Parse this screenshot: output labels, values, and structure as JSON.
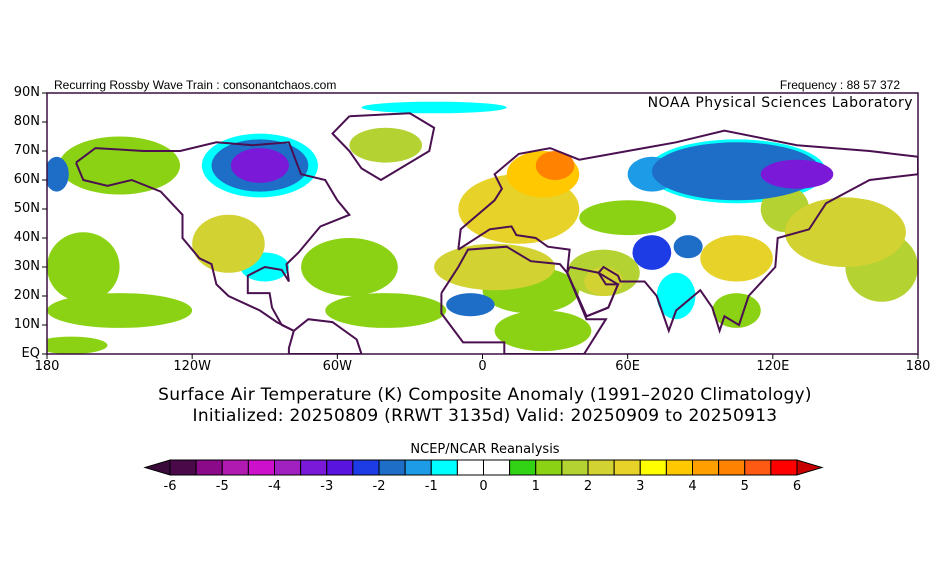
{
  "header": {
    "left_text": "Recurring Rossby Wave Train : consonantchaos.com",
    "right_text": "Frequency : 88 57 372",
    "org": "NOAA Physical Sciences Laboratory"
  },
  "titles": {
    "line1": "Surface Air Temperature (K) Composite Anomaly (1991–2020 Climatology)",
    "line2": "Initialized: 20250809 (RRWT 3135d) Valid: 20250909 to 20250913"
  },
  "colorbar": {
    "title": "NCEP/NCAR Reanalysis",
    "labels": [
      "-6",
      "-5",
      "-4",
      "-3",
      "-2",
      "-1",
      "0",
      "1",
      "2",
      "3",
      "4",
      "5",
      "6"
    ],
    "min": -6,
    "max": 6,
    "step": 0.5,
    "colors": [
      "#4a0a4a",
      "#8a0a8a",
      "#b01ab0",
      "#cc10cc",
      "#a020c0",
      "#7a1ad8",
      "#5a14e0",
      "#1e3ce6",
      "#1e6ec8",
      "#1e9be6",
      "#00ffff",
      "#ffffff",
      "#ffffff",
      "#32d214",
      "#8cd214",
      "#b4d232",
      "#d2d232",
      "#e6d228",
      "#ffff00",
      "#ffc800",
      "#ffa000",
      "#ff8200",
      "#ff5a14",
      "#ff0000"
    ],
    "under_color": "#3a0a3a",
    "over_color": "#c80000"
  },
  "chart_data": {
    "type": "heatmap",
    "title": "Surface Air Temperature (K) Composite Anomaly (1991–2020 Climatology)",
    "units": "K",
    "xlim": [
      -180,
      180
    ],
    "ylim": [
      0,
      90
    ],
    "x_ticks": [
      {
        "value": -180,
        "label": "180"
      },
      {
        "value": -120,
        "label": "120W"
      },
      {
        "value": -60,
        "label": "60W"
      },
      {
        "value": 0,
        "label": "0"
      },
      {
        "value": 60,
        "label": "60E"
      },
      {
        "value": 120,
        "label": "120E"
      },
      {
        "value": 180,
        "label": "180"
      }
    ],
    "y_ticks": [
      {
        "value": 0,
        "label": "EQ"
      },
      {
        "value": 10,
        "label": "10N"
      },
      {
        "value": 20,
        "label": "20N"
      },
      {
        "value": 30,
        "label": "30N"
      },
      {
        "value": 40,
        "label": "40N"
      },
      {
        "value": 50,
        "label": "50N"
      },
      {
        "value": 60,
        "label": "60N"
      },
      {
        "value": 70,
        "label": "70N"
      },
      {
        "value": 80,
        "label": "80N"
      },
      {
        "value": 90,
        "label": "90N"
      }
    ],
    "anomaly_regions": [
      {
        "lon": -150,
        "lat": 65,
        "rlon": 25,
        "rlat": 10,
        "value": 1
      },
      {
        "lon": -165,
        "lat": 30,
        "rlon": 15,
        "rlat": 12,
        "value": 1
      },
      {
        "lon": -150,
        "lat": 15,
        "rlon": 30,
        "rlat": 6,
        "value": 1
      },
      {
        "lon": -170,
        "lat": 3,
        "rlon": 15,
        "rlat": 3,
        "value": 1
      },
      {
        "lon": -55,
        "lat": 30,
        "rlon": 20,
        "rlat": 10,
        "value": 1
      },
      {
        "lon": -40,
        "lat": 15,
        "rlon": 25,
        "rlat": 6,
        "value": 1
      },
      {
        "lon": -40,
        "lat": 72,
        "rlon": 15,
        "rlat": 6,
        "value": 1.5
      },
      {
        "lon": -20,
        "lat": 85,
        "rlon": 30,
        "rlat": 2,
        "value": -0.8
      },
      {
        "lon": -176,
        "lat": 62,
        "rlon": 5,
        "rlat": 6,
        "value": -2
      },
      {
        "lon": -92,
        "lat": 65,
        "rlon": 24,
        "rlat": 11,
        "value": -0.8
      },
      {
        "lon": -92,
        "lat": 65,
        "rlon": 20,
        "rlat": 9,
        "value": -2
      },
      {
        "lon": -92,
        "lat": 65,
        "rlon": 12,
        "rlat": 6,
        "value": -3.5
      },
      {
        "lon": -105,
        "lat": 38,
        "rlon": 15,
        "rlat": 10,
        "value": 2
      },
      {
        "lon": -90,
        "lat": 30,
        "rlon": 10,
        "rlat": 5,
        "value": -1
      },
      {
        "lon": 15,
        "lat": 50,
        "rlon": 25,
        "rlat": 12,
        "value": 2.5
      },
      {
        "lon": 25,
        "lat": 62,
        "rlon": 15,
        "rlat": 8,
        "value": 3.5
      },
      {
        "lon": 30,
        "lat": 65,
        "rlon": 8,
        "rlat": 5,
        "value": 4.5
      },
      {
        "lon": 5,
        "lat": 30,
        "rlon": 25,
        "rlat": 8,
        "value": 2
      },
      {
        "lon": 20,
        "lat": 22,
        "rlon": 20,
        "rlat": 8,
        "value": 1
      },
      {
        "lon": -5,
        "lat": 17,
        "rlon": 10,
        "rlat": 4,
        "value": -2
      },
      {
        "lon": 25,
        "lat": 8,
        "rlon": 20,
        "rlat": 7,
        "value": 1
      },
      {
        "lon": 60,
        "lat": 47,
        "rlon": 20,
        "rlat": 6,
        "value": 1
      },
      {
        "lon": 70,
        "lat": 62,
        "rlon": 10,
        "rlat": 6,
        "value": -1.5
      },
      {
        "lon": 105,
        "lat": 63,
        "rlon": 37,
        "rlat": 11,
        "value": -0.8
      },
      {
        "lon": 105,
        "lat": 63,
        "rlon": 35,
        "rlat": 10,
        "value": -2
      },
      {
        "lon": 130,
        "lat": 62,
        "rlon": 15,
        "rlat": 5,
        "value": -3.5
      },
      {
        "lon": 70,
        "lat": 35,
        "rlon": 8,
        "rlat": 6,
        "value": -2.5
      },
      {
        "lon": 85,
        "lat": 37,
        "rlon": 6,
        "rlat": 4,
        "value": -2
      },
      {
        "lon": 50,
        "lat": 28,
        "rlon": 15,
        "rlat": 8,
        "value": 1.5
      },
      {
        "lon": 50,
        "lat": 25,
        "rlon": 8,
        "rlat": 5,
        "value": 2
      },
      {
        "lon": 80,
        "lat": 20,
        "rlon": 8,
        "rlat": 8,
        "value": -1
      },
      {
        "lon": 105,
        "lat": 15,
        "rlon": 10,
        "rlat": 6,
        "value": 1
      },
      {
        "lon": 105,
        "lat": 33,
        "rlon": 15,
        "rlat": 8,
        "value": 2.5
      },
      {
        "lon": 125,
        "lat": 50,
        "rlon": 10,
        "rlat": 8,
        "value": 1.5
      },
      {
        "lon": 150,
        "lat": 42,
        "rlon": 25,
        "rlat": 12,
        "value": 2
      },
      {
        "lon": 165,
        "lat": 30,
        "rlon": 15,
        "rlat": 12,
        "value": 1.5
      }
    ]
  }
}
